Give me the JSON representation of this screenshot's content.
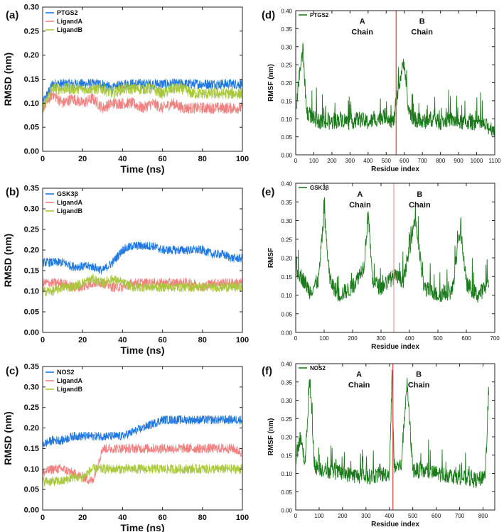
{
  "chart_data": [
    {
      "panel_label": "(a)",
      "type": "line",
      "xlabel": "Time (ns)",
      "ylabel": "RMSD (nm)",
      "xlim": [
        0,
        100
      ],
      "ylim": [
        0,
        0.3
      ],
      "xticks": [
        "0",
        "20",
        "40",
        "60",
        "80",
        "100"
      ],
      "yticks": [
        "0.00",
        "0.05",
        "0.10",
        "0.15",
        "0.20",
        "0.25",
        "0.30"
      ],
      "legend_position": "top-left",
      "series": [
        {
          "name": "PTGS2",
          "color": "#1f77e0",
          "x": [
            0,
            5,
            10,
            15,
            20,
            25,
            30,
            35,
            40,
            45,
            50,
            55,
            60,
            65,
            70,
            75,
            80,
            85,
            90,
            95,
            100
          ],
          "values": [
            0.1,
            0.14,
            0.14,
            0.14,
            0.14,
            0.14,
            0.14,
            0.13,
            0.14,
            0.14,
            0.14,
            0.14,
            0.14,
            0.14,
            0.14,
            0.14,
            0.14,
            0.14,
            0.14,
            0.14,
            0.14
          ]
        },
        {
          "name": "LigandA",
          "color": "#f08080",
          "x": [
            0,
            5,
            10,
            15,
            20,
            25,
            30,
            35,
            40,
            45,
            50,
            55,
            60,
            65,
            70,
            75,
            80,
            85,
            90,
            95,
            100
          ],
          "values": [
            0.09,
            0.12,
            0.1,
            0.11,
            0.1,
            0.11,
            0.09,
            0.1,
            0.1,
            0.1,
            0.09,
            0.1,
            0.09,
            0.1,
            0.09,
            0.09,
            0.09,
            0.09,
            0.09,
            0.09,
            0.09
          ]
        },
        {
          "name": "LigandB",
          "color": "#a8c83c",
          "x": [
            0,
            5,
            10,
            15,
            20,
            25,
            30,
            35,
            40,
            45,
            50,
            55,
            60,
            65,
            70,
            75,
            80,
            85,
            90,
            95,
            100
          ],
          "values": [
            0.09,
            0.13,
            0.13,
            0.13,
            0.13,
            0.13,
            0.13,
            0.12,
            0.13,
            0.13,
            0.13,
            0.13,
            0.12,
            0.13,
            0.13,
            0.12,
            0.12,
            0.12,
            0.12,
            0.12,
            0.12
          ]
        }
      ]
    },
    {
      "panel_label": "(b)",
      "type": "line",
      "xlabel": "Time (ns)",
      "ylabel": "RMSD (nm)",
      "xlim": [
        0,
        100
      ],
      "ylim": [
        0,
        0.35
      ],
      "xticks": [
        "0",
        "20",
        "40",
        "60",
        "80",
        "100"
      ],
      "yticks": [
        "0.00",
        "0.05",
        "0.10",
        "0.15",
        "0.20",
        "0.25",
        "0.30",
        "0.35"
      ],
      "legend_position": "top-left",
      "series": [
        {
          "name": "GSK3β",
          "color": "#1f77e0",
          "x": [
            0,
            5,
            10,
            15,
            20,
            25,
            30,
            35,
            40,
            45,
            50,
            55,
            60,
            65,
            70,
            75,
            80,
            85,
            90,
            95,
            100
          ],
          "values": [
            0.17,
            0.17,
            0.17,
            0.16,
            0.16,
            0.16,
            0.15,
            0.17,
            0.2,
            0.21,
            0.21,
            0.21,
            0.2,
            0.2,
            0.2,
            0.2,
            0.2,
            0.19,
            0.19,
            0.18,
            0.18
          ]
        },
        {
          "name": "LigandA",
          "color": "#f08080",
          "x": [
            0,
            5,
            10,
            15,
            20,
            25,
            30,
            35,
            40,
            45,
            50,
            55,
            60,
            65,
            70,
            75,
            80,
            85,
            90,
            95,
            100
          ],
          "values": [
            0.12,
            0.12,
            0.12,
            0.11,
            0.11,
            0.12,
            0.12,
            0.11,
            0.11,
            0.12,
            0.12,
            0.12,
            0.12,
            0.12,
            0.12,
            0.12,
            0.11,
            0.12,
            0.12,
            0.12,
            0.12
          ]
        },
        {
          "name": "LigandB",
          "color": "#a8c83c",
          "x": [
            0,
            5,
            10,
            15,
            20,
            25,
            30,
            35,
            40,
            45,
            50,
            55,
            60,
            65,
            70,
            75,
            80,
            85,
            90,
            95,
            100
          ],
          "values": [
            0.1,
            0.1,
            0.11,
            0.11,
            0.12,
            0.13,
            0.12,
            0.13,
            0.12,
            0.11,
            0.11,
            0.11,
            0.11,
            0.11,
            0.11,
            0.11,
            0.11,
            0.11,
            0.11,
            0.11,
            0.11
          ]
        }
      ]
    },
    {
      "panel_label": "(c)",
      "type": "line",
      "xlabel": "Time (ns)",
      "ylabel": "RMSD (nm)",
      "xlim": [
        0,
        100
      ],
      "ylim": [
        0,
        0.35
      ],
      "xticks": [
        "0",
        "20",
        "40",
        "60",
        "80",
        "100"
      ],
      "yticks": [
        "0.00",
        "0.05",
        "0.10",
        "0.15",
        "0.20",
        "0.25",
        "0.30",
        "0.35"
      ],
      "legend_position": "top-left",
      "series": [
        {
          "name": "NOS2",
          "color": "#1f77e0",
          "x": [
            0,
            5,
            10,
            15,
            20,
            25,
            30,
            35,
            40,
            45,
            50,
            55,
            60,
            65,
            70,
            75,
            80,
            85,
            90,
            95,
            100
          ],
          "values": [
            0.16,
            0.17,
            0.17,
            0.18,
            0.18,
            0.18,
            0.18,
            0.18,
            0.18,
            0.19,
            0.2,
            0.21,
            0.22,
            0.22,
            0.22,
            0.22,
            0.22,
            0.22,
            0.22,
            0.22,
            0.22
          ]
        },
        {
          "name": "LigandA",
          "color": "#f08080",
          "x": [
            0,
            5,
            10,
            15,
            20,
            25,
            30,
            35,
            40,
            45,
            50,
            55,
            60,
            65,
            70,
            75,
            80,
            85,
            90,
            95,
            100
          ],
          "values": [
            0.09,
            0.1,
            0.1,
            0.09,
            0.08,
            0.07,
            0.15,
            0.15,
            0.15,
            0.15,
            0.15,
            0.15,
            0.15,
            0.15,
            0.15,
            0.15,
            0.15,
            0.15,
            0.15,
            0.15,
            0.14
          ]
        },
        {
          "name": "LigandB",
          "color": "#a8c83c",
          "x": [
            0,
            5,
            10,
            15,
            20,
            25,
            30,
            35,
            40,
            45,
            50,
            55,
            60,
            65,
            70,
            75,
            80,
            85,
            90,
            95,
            100
          ],
          "values": [
            0.07,
            0.07,
            0.07,
            0.08,
            0.08,
            0.1,
            0.1,
            0.1,
            0.1,
            0.1,
            0.1,
            0.1,
            0.1,
            0.1,
            0.1,
            0.1,
            0.1,
            0.1,
            0.1,
            0.1,
            0.1
          ]
        }
      ]
    },
    {
      "panel_label": "(d)",
      "type": "line",
      "xlabel": "Residue index",
      "ylabel": "RMSF (nm)",
      "xlim": [
        0,
        1100
      ],
      "ylim": [
        0,
        0.4
      ],
      "xticks": [
        "0",
        "100",
        "200",
        "300",
        "400",
        "500",
        "600",
        "700",
        "800",
        "900",
        "1000",
        "1100"
      ],
      "yticks": [
        "0.00",
        "0.05",
        "0.10",
        "0.15",
        "0.20",
        "0.25",
        "0.30",
        "0.35",
        "0.40"
      ],
      "legend_position": "top-left",
      "chain_boundary": 555,
      "chain_boundary_color": "#e05050",
      "annotations": [
        "A",
        "Chain",
        "B",
        "Chain"
      ],
      "series": [
        {
          "name": "PTGS2",
          "color": "#1a7a1a",
          "x": [
            0,
            20,
            40,
            60,
            100,
            150,
            200,
            250,
            300,
            350,
            400,
            450,
            500,
            540,
            580,
            600,
            620,
            650,
            700,
            750,
            800,
            850,
            900,
            950,
            1000,
            1050,
            1100
          ],
          "values": [
            0.12,
            0.22,
            0.29,
            0.12,
            0.1,
            0.09,
            0.09,
            0.1,
            0.09,
            0.1,
            0.09,
            0.1,
            0.11,
            0.09,
            0.22,
            0.26,
            0.13,
            0.1,
            0.09,
            0.1,
            0.09,
            0.1,
            0.09,
            0.09,
            0.09,
            0.08,
            0.07
          ]
        }
      ]
    },
    {
      "panel_label": "(e)",
      "type": "line",
      "xlabel": "Residue index",
      "ylabel": "RMSF",
      "xlim": [
        0,
        700
      ],
      "ylim": [
        0,
        0.4
      ],
      "xticks": [
        "0",
        "100",
        "200",
        "300",
        "400",
        "500",
        "600",
        "700"
      ],
      "yticks": [
        "0.00",
        "0.05",
        "0.10",
        "0.15",
        "0.20",
        "0.25",
        "0.30",
        "0.35",
        "0.40"
      ],
      "legend_position": "top-left",
      "chain_boundary": 345,
      "chain_boundary_color": "#f0a0a0",
      "annotations": [
        "A",
        "Chain",
        "B",
        "Chain"
      ],
      "series": [
        {
          "name": "GSK3β",
          "color": "#1a7a1a",
          "x": [
            0,
            20,
            50,
            80,
            100,
            120,
            150,
            200,
            240,
            255,
            270,
            300,
            345,
            380,
            420,
            450,
            500,
            550,
            580,
            600,
            640,
            680
          ],
          "values": [
            0.17,
            0.15,
            0.11,
            0.14,
            0.32,
            0.14,
            0.1,
            0.12,
            0.18,
            0.32,
            0.14,
            0.12,
            0.15,
            0.14,
            0.31,
            0.12,
            0.1,
            0.11,
            0.28,
            0.13,
            0.1,
            0.13
          ]
        }
      ]
    },
    {
      "panel_label": "(f)",
      "type": "line",
      "xlabel": "Residue index",
      "ylabel": "RMSF (nm)",
      "xlim": [
        0,
        850
      ],
      "ylim": [
        0,
        0.4
      ],
      "xticks": [
        "0",
        "100",
        "200",
        "300",
        "400",
        "500",
        "600",
        "700",
        "800"
      ],
      "yticks": [
        "0.00",
        "0.05",
        "0.10",
        "0.15",
        "0.20",
        "0.25",
        "0.30",
        "0.35",
        "0.40"
      ],
      "legend_position": "top-left",
      "chain_boundary": 415,
      "chain_boundary_color": "#e05050",
      "annotations": [
        "A",
        "Chain",
        "B",
        "Chain"
      ],
      "series": [
        {
          "name": "NOS2",
          "color": "#1a7a1a",
          "x": [
            0,
            20,
            40,
            60,
            80,
            120,
            200,
            300,
            400,
            412,
            420,
            450,
            475,
            500,
            600,
            700,
            780,
            810,
            825
          ],
          "values": [
            0.14,
            0.2,
            0.13,
            0.36,
            0.12,
            0.11,
            0.1,
            0.09,
            0.1,
            0.38,
            0.12,
            0.12,
            0.35,
            0.11,
            0.1,
            0.09,
            0.08,
            0.1,
            0.33
          ]
        }
      ]
    }
  ]
}
